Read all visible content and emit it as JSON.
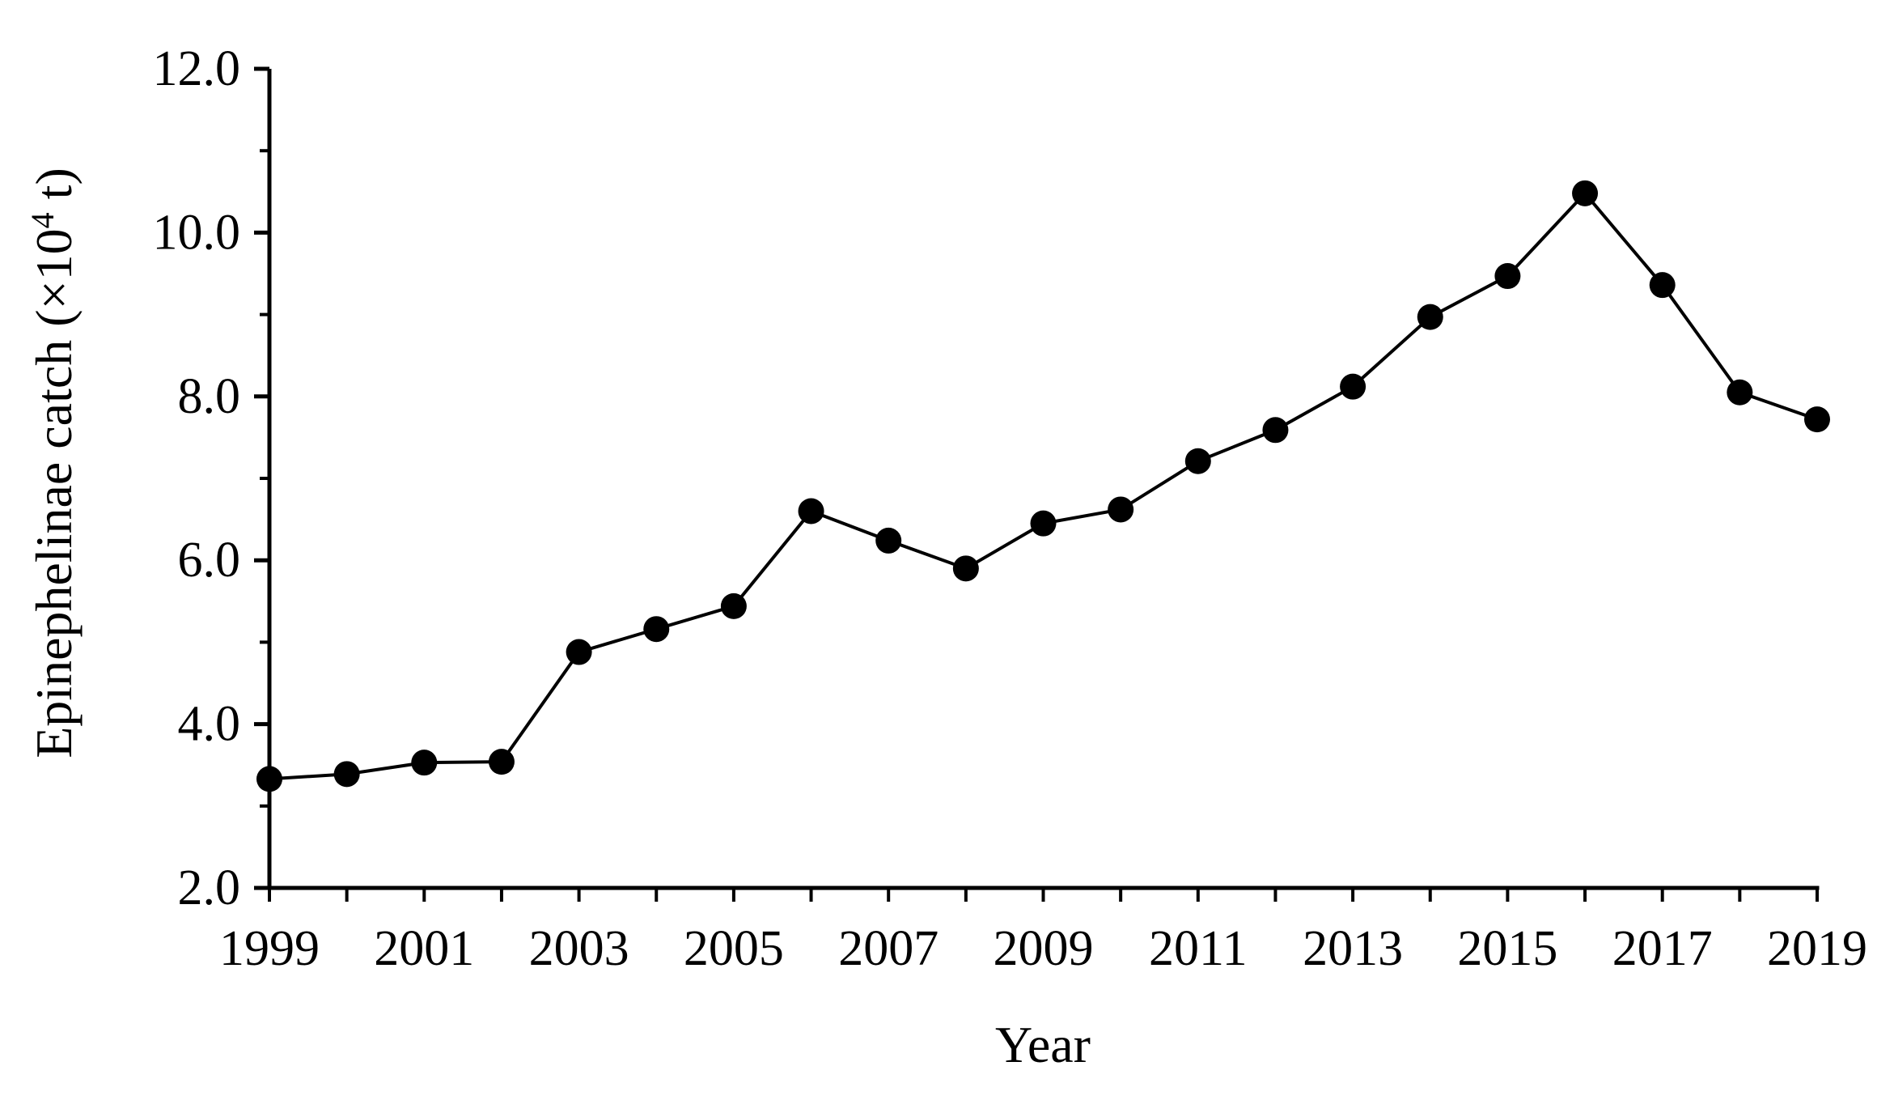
{
  "figure": {
    "background_color": "#ffffff",
    "ink_color": "#000000"
  },
  "chart_data": {
    "type": "line",
    "title": "",
    "xlabel": "Year",
    "ylabel": "Epinephelinae catch (×10⁴ t)",
    "ylabel_parts": {
      "base": "Epinephelinae catch (×10",
      "superscript": "4",
      "suffix": " t)"
    },
    "x": [
      1999,
      2000,
      2001,
      2002,
      2003,
      2004,
      2005,
      2006,
      2007,
      2008,
      2009,
      2010,
      2011,
      2012,
      2013,
      2014,
      2015,
      2016,
      2017,
      2018,
      2019
    ],
    "series": [
      {
        "name": "Epinephelinae catch",
        "values": [
          3.33,
          3.39,
          3.53,
          3.54,
          4.88,
          5.16,
          5.44,
          6.6,
          6.24,
          5.9,
          6.45,
          6.62,
          7.21,
          7.59,
          8.12,
          8.97,
          9.47,
          10.48,
          9.36,
          8.05,
          7.72
        ],
        "color": "#000000",
        "marker": "filled-circle"
      }
    ],
    "xlim": [
      1999,
      2019
    ],
    "ylim": [
      2.0,
      12.0
    ],
    "x_axis": {
      "tick_years": [
        1999,
        2000,
        2001,
        2002,
        2003,
        2004,
        2005,
        2006,
        2007,
        2008,
        2009,
        2010,
        2011,
        2012,
        2013,
        2014,
        2015,
        2016,
        2017,
        2018,
        2019
      ],
      "labeled_years": [
        "1999",
        "2001",
        "2003",
        "2005",
        "2007",
        "2009",
        "2011",
        "2013",
        "2015",
        "2017",
        "2019"
      ],
      "labeled_year_values": [
        1999,
        2001,
        2003,
        2005,
        2007,
        2009,
        2011,
        2013,
        2015,
        2017,
        2019
      ]
    },
    "y_axis": {
      "major_tick_values": [
        2,
        4,
        6,
        8,
        10,
        12
      ],
      "major_tick_labels": [
        "2.0",
        "4.0",
        "6.0",
        "8.0",
        "10.0",
        "12.0"
      ],
      "minor_tick_values": [
        3,
        5,
        7,
        9,
        11
      ]
    },
    "grid": false,
    "legend": null
  }
}
